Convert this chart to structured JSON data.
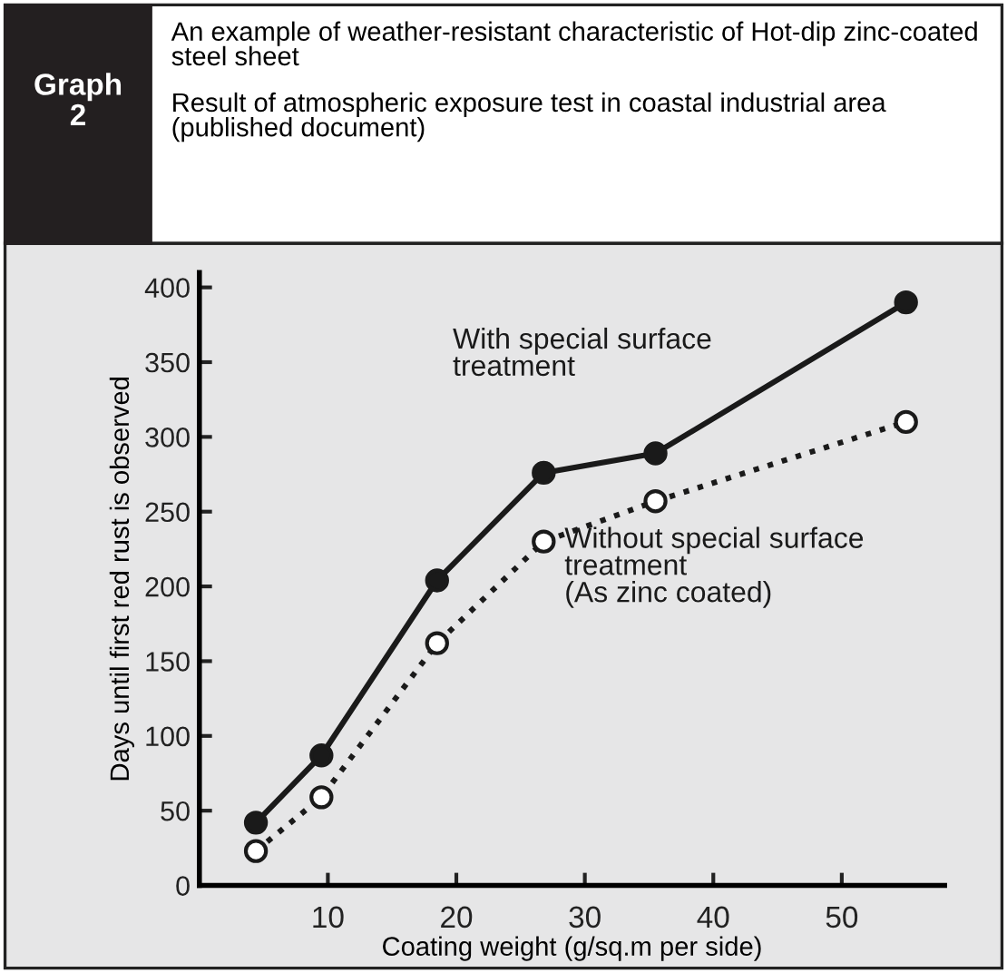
{
  "chart_data": {
    "type": "line",
    "title": "An example of weather-resistant characteristic of Hot-dip zinc-coated steel sheet",
    "subtitle": "Result of atmospheric exposure test in coastal industrial area (published document)",
    "xlabel": "Coating weight (g/sq.m per side)",
    "ylabel": "Days until first red rust is observed",
    "annotations": [
      "Graph\n2"
    ],
    "series": [
      {
        "name": "With special surface\ntreatment",
        "color": "#1a1a1a",
        "marker": "circle",
        "line_style": "solid",
        "x": [
          4.4,
          9.5,
          18.5,
          26.8,
          35.5,
          55
        ],
        "values": [
          42,
          87,
          204,
          276,
          289,
          390
        ]
      },
      {
        "name": "Without special surface\ntreatment\n(As zinc coated)",
        "color": "#1a1a1a",
        "marker": "circle",
        "line_style": "dotted",
        "x": [
          4.4,
          9.5,
          18.5,
          26.8,
          35.5,
          55
        ],
        "values": [
          23,
          59,
          162,
          230,
          257,
          310
        ]
      }
    ],
    "xlim": [
      0,
      58
    ],
    "ylim": [
      0,
      410
    ],
    "xticks": [
      10,
      20,
      30,
      40,
      50
    ],
    "yticks": [
      0,
      50,
      100,
      150,
      200,
      250,
      300,
      350,
      400
    ],
    "grid": false,
    "legend": false
  }
}
